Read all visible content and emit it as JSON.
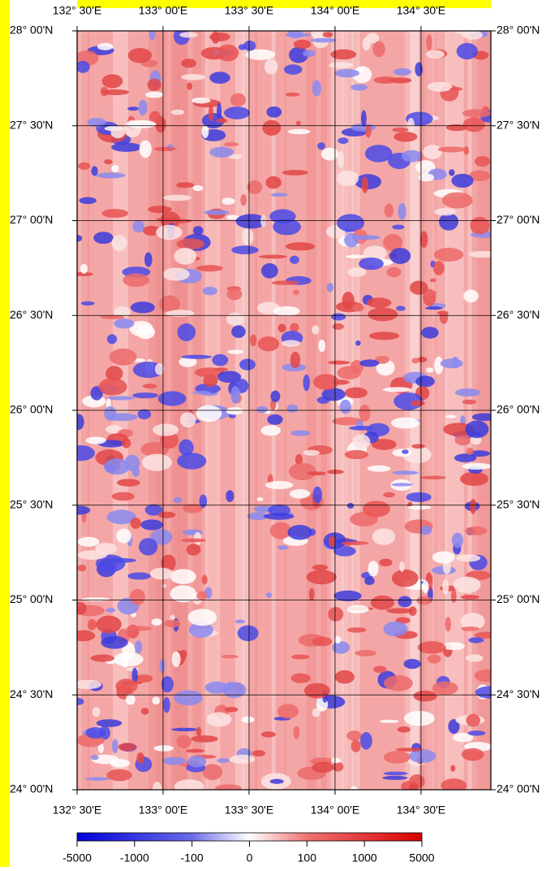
{
  "map": {
    "xlim": [
      132.5,
      134.906
    ],
    "ylim": [
      24,
      28
    ],
    "lon_ticks": [
      {
        "value": 132.5,
        "label": "132° 30'E"
      },
      {
        "value": 133.0,
        "label": "133° 00'E"
      },
      {
        "value": 133.5,
        "label": "133° 30'E"
      },
      {
        "value": 134.0,
        "label": "134° 00'E"
      },
      {
        "value": 134.5,
        "label": "134° 30'E"
      }
    ],
    "lat_ticks": [
      {
        "value": 28.0,
        "label": "28° 00'N"
      },
      {
        "value": 27.5,
        "label": "27° 30'N"
      },
      {
        "value": 27.0,
        "label": "27° 00'N"
      },
      {
        "value": 26.5,
        "label": "26° 30'N"
      },
      {
        "value": 26.0,
        "label": "26° 00'N"
      },
      {
        "value": 25.5,
        "label": "25° 30'N"
      },
      {
        "value": 25.0,
        "label": "25° 00'N"
      },
      {
        "value": 24.5,
        "label": "24° 30'N"
      },
      {
        "value": 24.0,
        "label": "24° 00'N"
      }
    ]
  },
  "colorbar": {
    "ticks": [
      -5000,
      -1000,
      -100,
      0,
      100,
      1000,
      5000
    ]
  }
}
